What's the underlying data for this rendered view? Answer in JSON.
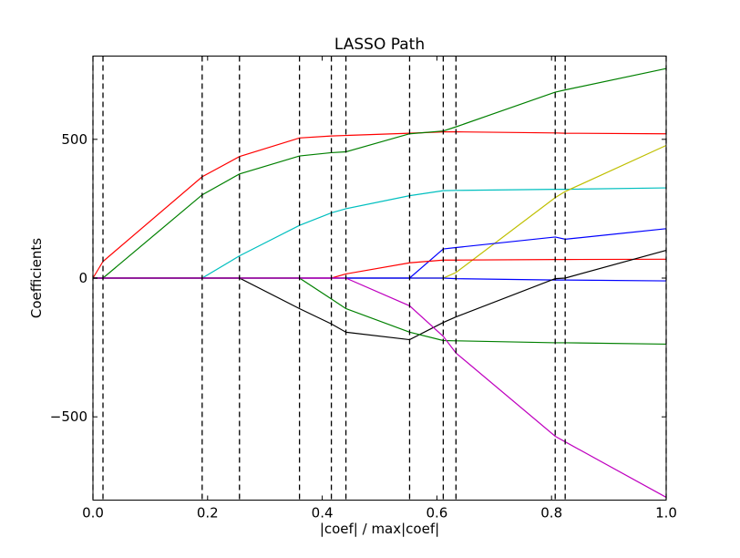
{
  "chart_data": {
    "type": "line",
    "title": "LASSO Path",
    "xlabel": "|coef| / max|coef|",
    "ylabel": "Coefficients",
    "xlim": [
      0.0,
      1.0
    ],
    "ylim": [
      -800,
      800
    ],
    "x_ticks": [
      0.0,
      0.2,
      0.4,
      0.6,
      0.8,
      1.0
    ],
    "x_tick_labels": [
      "0.0",
      "0.2",
      "0.4",
      "0.6",
      "0.8",
      "1.0"
    ],
    "y_ticks": [
      -500,
      0,
      500
    ],
    "y_tick_labels": [
      "−500",
      "0",
      "500"
    ],
    "grid": false,
    "legend": "none",
    "vertical_lines": [
      0.0,
      0.0175,
      0.1905,
      0.2556,
      0.3603,
      0.4159,
      0.4413,
      0.5524,
      0.6111,
      0.6333,
      0.8064,
      0.8238,
      1.0
    ],
    "x": [
      0.0,
      0.0175,
      0.1905,
      0.2556,
      0.3603,
      0.4159,
      0.4413,
      0.5524,
      0.6111,
      0.6333,
      0.8064,
      0.8238,
      1.0
    ],
    "series": [
      {
        "color": "#ff0000",
        "values": [
          0,
          60,
          365,
          438,
          505,
          512,
          514,
          522,
          527,
          527,
          523,
          522,
          520
        ]
      },
      {
        "color": "#008000",
        "values": [
          0,
          0,
          300,
          375,
          440,
          452,
          455,
          520,
          530,
          545,
          670,
          678,
          755
        ]
      },
      {
        "color": "#00bfbf",
        "values": [
          0,
          0,
          0,
          80,
          190,
          235,
          250,
          297,
          315,
          316,
          320,
          320,
          325
        ]
      },
      {
        "color": "#bfbf00",
        "values": [
          0,
          0,
          0,
          0,
          0,
          0,
          0,
          0,
          0,
          20,
          290,
          312,
          478
        ]
      },
      {
        "color": "#0000ff",
        "values": [
          0,
          0,
          0,
          0,
          0,
          0,
          0,
          0,
          105,
          110,
          148,
          140,
          178
        ]
      },
      {
        "color": "#ff0000",
        "values": [
          0,
          0,
          0,
          0,
          0,
          0,
          15,
          55,
          65,
          65,
          67,
          67,
          68
        ]
      },
      {
        "color": "#0000ff",
        "values": [
          0,
          0,
          0,
          0,
          0,
          0,
          0,
          0,
          0,
          -2,
          -7,
          -7,
          -10
        ]
      },
      {
        "color": "#000000",
        "values": [
          0,
          0,
          0,
          0,
          -110,
          -165,
          -195,
          -222,
          -160,
          -140,
          -2,
          0,
          100
        ]
      },
      {
        "color": "#008000",
        "values": [
          0,
          0,
          0,
          0,
          0,
          -75,
          -110,
          -195,
          -225,
          -226,
          -233,
          -233,
          -238
        ]
      },
      {
        "color": "#bf00bf",
        "values": [
          0,
          0,
          0,
          0,
          0,
          0,
          0,
          -100,
          -210,
          -270,
          -570,
          -590,
          -790
        ]
      }
    ]
  }
}
